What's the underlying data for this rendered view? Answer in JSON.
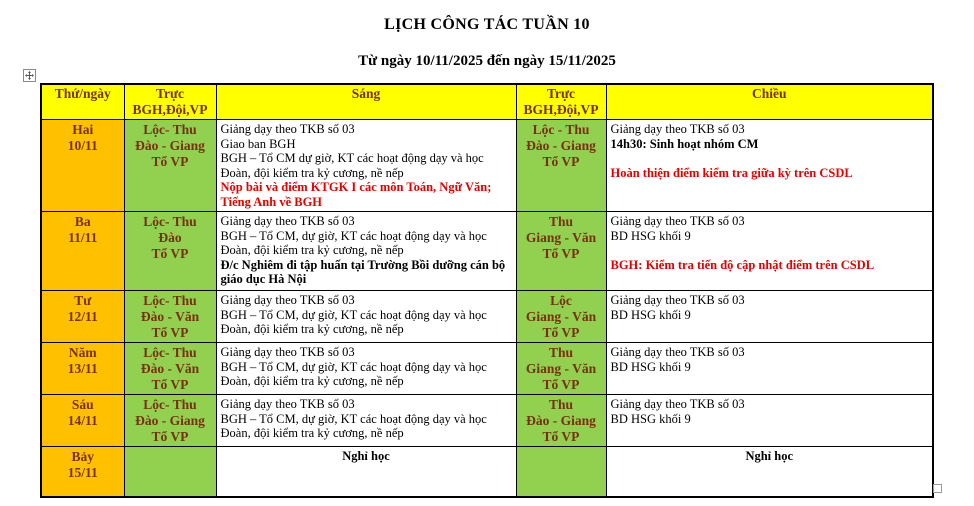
{
  "page": {
    "title": "LỊCH CÔNG TÁC TUẦN 10",
    "subtitle": "Từ ngày 10/11/2025 đến ngày 15/11/2025"
  },
  "colors": {
    "header_bg": "#FFFF00",
    "day_bg": "#FFC000",
    "duty_bg": "#92D050",
    "heading_text": "#76310F",
    "alert_text": "#E60000"
  },
  "table": {
    "headers": [
      {
        "lines": [
          "Thứ/ngày"
        ]
      },
      {
        "lines": [
          "Trực",
          "BGH,Đội,VP"
        ]
      },
      {
        "lines": [
          "Sáng"
        ]
      },
      {
        "lines": [
          "Trực",
          "BGH,Đội,VP"
        ]
      },
      {
        "lines": [
          "Chiều"
        ]
      }
    ],
    "rows": [
      {
        "day": [
          "Hai",
          "10/11"
        ],
        "duty_am": [
          "Lộc- Thu",
          "Đào - Giang",
          "Tổ VP"
        ],
        "morning": [
          {
            "text": "Giảng dạy theo TKB số 03",
            "style": "n"
          },
          {
            "text": "Giao ban BGH",
            "style": "n"
          },
          {
            "text": "BGH – Tổ CM dự giờ, KT các hoạt động dạy và học Đoàn, đội kiểm tra kỷ cương, nề nếp",
            "style": "n"
          },
          {
            "text": "Nộp bài và điểm KTGK I  các môn Toán, Ngữ Văn; Tiếng Anh về BGH",
            "style": "rb"
          }
        ],
        "duty_pm": [
          "Lộc - Thu",
          "Đào - Giang",
          "Tổ VP"
        ],
        "afternoon": [
          {
            "text": "Giảng dạy theo TKB số 03",
            "style": "n"
          },
          {
            "text": "14h30: Sinh hoạt nhóm CM",
            "style": "b"
          },
          {
            "text": "",
            "style": "n"
          },
          {
            "text": "Hoàn thiện điểm kiểm tra giữa kỳ trên CSDL",
            "style": "rb"
          }
        ]
      },
      {
        "day": [
          "Ba",
          "11/11"
        ],
        "duty_am": [
          "Lộc- Thu",
          "Đào",
          "Tổ VP"
        ],
        "morning": [
          {
            "text": "Giảng dạy theo TKB số 03",
            "style": "n"
          },
          {
            "text": "BGH – Tổ CM, dự giờ, KT các hoạt động dạy và học Đoàn, đội kiểm tra kỷ cương, nề nếp",
            "style": "n"
          },
          {
            "text": "Đ/c Nghiêm đi tập huấn tại Trường Bồi dưỡng cán bộ giáo dục Hà Nội",
            "style": "b"
          }
        ],
        "duty_pm": [
          "Thu",
          "Giang - Văn",
          "Tổ VP"
        ],
        "afternoon": [
          {
            "text": "Giảng dạy theo TKB số 03",
            "style": "n"
          },
          {
            "text": "BD HSG khối 9",
            "style": "n"
          },
          {
            "text": "",
            "style": "n"
          },
          {
            "text": "BGH: Kiểm tra tiến độ cập nhật điểm trên CSDL",
            "style": "rb"
          }
        ]
      },
      {
        "day": [
          "Tư",
          "12/11"
        ],
        "duty_am": [
          "Lộc- Thu",
          "Đào - Văn",
          "Tổ VP"
        ],
        "morning": [
          {
            "text": "Giảng dạy theo TKB số 03",
            "style": "n"
          },
          {
            "text": "BGH – Tổ CM, dự giờ, KT các hoạt động dạy và học Đoàn, đội kiểm tra kỷ cương, nề nếp",
            "style": "n"
          }
        ],
        "duty_pm": [
          "Lộc",
          "Giang - Văn",
          "Tổ VP"
        ],
        "afternoon": [
          {
            "text": "Giảng dạy theo TKB số 03",
            "style": "n"
          },
          {
            "text": "BD HSG khối 9",
            "style": "n"
          }
        ]
      },
      {
        "day": [
          "Năm",
          "13/11"
        ],
        "duty_am": [
          "Lộc- Thu",
          "Đào - Văn",
          "Tổ VP"
        ],
        "morning": [
          {
            "text": "Giảng dạy theo TKB số 03",
            "style": "n"
          },
          {
            "text": "BGH – Tổ CM, dự giờ, KT các hoạt động dạy và học Đoàn, đội kiểm tra kỷ cương, nề nếp",
            "style": "n"
          }
        ],
        "duty_pm": [
          "Thu",
          "Giang - Văn",
          "Tổ VP"
        ],
        "afternoon": [
          {
            "text": "Giảng dạy theo TKB số 03",
            "style": "n"
          },
          {
            "text": "BD HSG khối 9",
            "style": "n"
          }
        ]
      },
      {
        "day": [
          "Sáu",
          "14/11"
        ],
        "duty_am": [
          "Lộc- Thu",
          "Đào - Giang",
          "Tổ VP"
        ],
        "morning": [
          {
            "text": "Giảng dạy theo TKB số 03",
            "style": "n"
          },
          {
            "text": "BGH – Tổ CM, dự giờ, KT các hoạt động dạy và học Đoàn, đội kiểm tra kỷ cương, nề nếp",
            "style": "n"
          }
        ],
        "duty_pm": [
          "Thu",
          "Đào - Giang",
          "Tổ VP"
        ],
        "afternoon": [
          {
            "text": "Giảng dạy theo TKB số 03",
            "style": "n"
          },
          {
            "text": "BD HSG khối 9",
            "style": "n"
          }
        ]
      },
      {
        "day": [
          "Bảy",
          "15/11"
        ],
        "duty_am": [],
        "morning": [
          {
            "text": "Nghỉ học",
            "style": "cb"
          }
        ],
        "duty_pm": [],
        "afternoon": [
          {
            "text": "Nghỉ học",
            "style": "cb"
          }
        ]
      }
    ]
  }
}
